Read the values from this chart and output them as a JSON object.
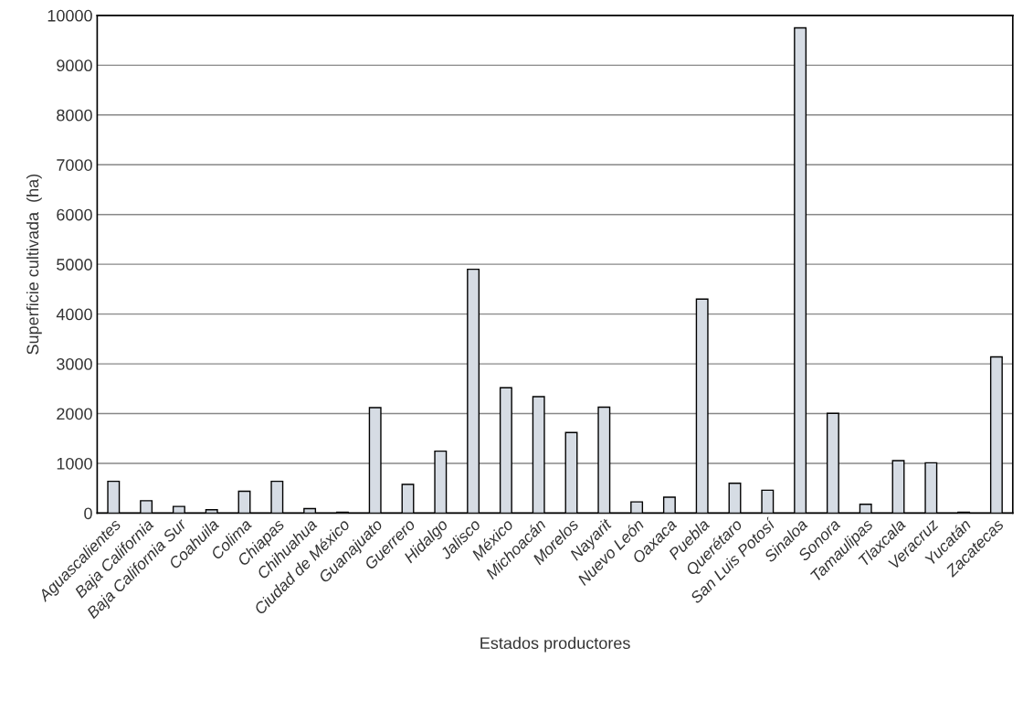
{
  "chart_data": {
    "type": "bar",
    "xlabel": "Estados productores",
    "ylabel": "Superficie cultivada  (ha)",
    "categories": [
      "Aguascalientes",
      "Baja California",
      "Baja California Sur",
      "Coahuila",
      "Colima",
      "Chiapas",
      "Chihuahua",
      "Ciudad de México",
      "Guanajuato",
      "Guerrero",
      "Hidalgo",
      "Jalisco",
      "México",
      "Michoacán",
      "Morelos",
      "Nayarit",
      "Nuevo León",
      "Oaxaca",
      "Puebla",
      "Querétaro",
      "San Luis Potosí",
      "Sinaloa",
      "Sonora",
      "Tamaulipas",
      "Tlaxcala",
      "Veracruz",
      "Yucatán",
      "Zacatecas"
    ],
    "values": [
      640,
      250,
      135,
      67,
      440,
      640,
      90,
      20,
      2120,
      577,
      1245,
      4900,
      2520,
      2340,
      1620,
      2130,
      227,
      320,
      4300,
      600,
      460,
      9750,
      2006,
      178,
      1055,
      1012,
      20,
      3140
    ],
    "color": "#d6dce4",
    "ylim": [
      0,
      10000
    ],
    "yticks": [
      0,
      1000,
      2000,
      3000,
      4000,
      5000,
      6000,
      7000,
      8000,
      9000,
      10000
    ],
    "grid": "y",
    "legend": false
  }
}
